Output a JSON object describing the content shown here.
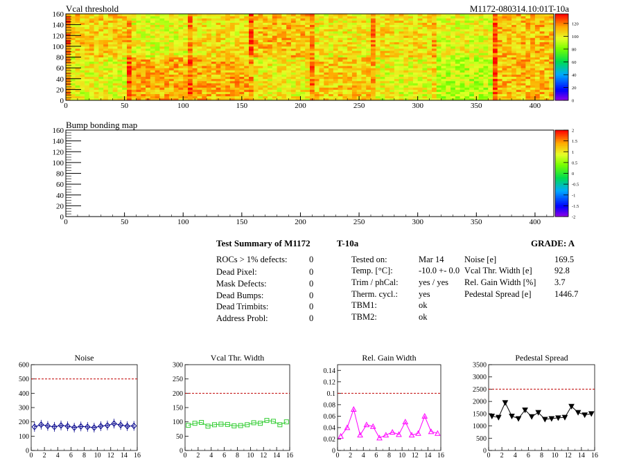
{
  "heatmaps": [
    {
      "title": "Vcal threshold",
      "runlabel": "M1172-080314.10:01T-10a",
      "xticks": [
        "0",
        "50",
        "100",
        "150",
        "200",
        "250",
        "300",
        "350",
        "400"
      ],
      "yticks": [
        "0",
        "20",
        "40",
        "60",
        "80",
        "100",
        "120",
        "140",
        "160"
      ],
      "xrange": [
        0,
        416
      ],
      "yrange": [
        0,
        160
      ],
      "colorbar_ticks": [
        "0",
        "20",
        "40",
        "60",
        "80",
        "100",
        "120"
      ],
      "colorbar_range": [
        0,
        135
      ]
    },
    {
      "title": "Bump bonding map",
      "runlabel": "",
      "xticks": [
        "0",
        "50",
        "100",
        "150",
        "200",
        "250",
        "300",
        "350",
        "400"
      ],
      "yticks": [
        "0",
        "20",
        "40",
        "60",
        "80",
        "100",
        "120",
        "140",
        "160"
      ],
      "xrange": [
        0,
        416
      ],
      "yrange": [
        0,
        160
      ],
      "colorbar_ticks": [
        "-2",
        "-1.5",
        "-1",
        "-0.5",
        "0",
        "0.5",
        "1",
        "1.5",
        "2"
      ],
      "colorbar_range": [
        -2,
        2
      ]
    }
  ],
  "summary": {
    "title_left": "Test Summary of M1172",
    "title_mid": "T-10a",
    "grade": "GRADE:  A",
    "col1": [
      {
        "label": "ROCs > 1% defects:",
        "value": "0"
      },
      {
        "label": "Dead Pixel:",
        "value": "0"
      },
      {
        "label": "Mask Defects:",
        "value": "0"
      },
      {
        "label": "Dead Bumps:",
        "value": "0"
      },
      {
        "label": "Dead Trimbits:",
        "value": "0"
      },
      {
        "label": "Address Probl:",
        "value": "0"
      }
    ],
    "col2": [
      {
        "label": "Tested on:",
        "value": "Mar 14"
      },
      {
        "label": "Temp. [°C]:",
        "value": "-10.0 +- 0.0"
      },
      {
        "label": "Trim / phCal:",
        "value": "yes / yes"
      },
      {
        "label": "Therm. cycl.:",
        "value": "yes"
      },
      {
        "label": "TBM1:",
        "value": "ok"
      },
      {
        "label": "TBM2:",
        "value": "ok"
      }
    ],
    "col3": [
      {
        "label": "Noise [e]",
        "value": "169.5"
      },
      {
        "label": "Vcal Thr. Width [e]",
        "value": "92.8"
      },
      {
        "label": "Rel. Gain Width [%]",
        "value": "3.7"
      },
      {
        "label": "Pedestal Spread [e]",
        "value": "1446.7"
      }
    ]
  },
  "chart_data": [
    {
      "type": "heatmap",
      "title": "Vcal threshold",
      "xlim": [
        0,
        416
      ],
      "ylim": [
        0,
        160
      ],
      "zlim": [
        0,
        135
      ],
      "roc_grid": {
        "cols": 8,
        "rows": 2,
        "col_width": 52,
        "row_height": 80
      }
    },
    {
      "type": "heatmap",
      "title": "Bump bonding map",
      "xlim": [
        0,
        416
      ],
      "ylim": [
        0,
        160
      ],
      "zlim": [
        -2,
        2
      ]
    },
    {
      "type": "scatter",
      "title": "Noise",
      "xlim": [
        0,
        16
      ],
      "ylim": [
        0,
        600
      ],
      "xticks": [
        "0",
        "2",
        "4",
        "6",
        "8",
        "10",
        "12",
        "14",
        "16"
      ],
      "yticks": [
        "0",
        "100",
        "200",
        "300",
        "400",
        "500",
        "600"
      ],
      "threshold": 500,
      "color": "#00008b",
      "marker": "diamond",
      "x": [
        0.5,
        1.5,
        2.5,
        3.5,
        4.5,
        5.5,
        6.5,
        7.5,
        8.5,
        9.5,
        10.5,
        11.5,
        12.5,
        13.5,
        14.5,
        15.5
      ],
      "values": [
        165,
        180,
        172,
        165,
        175,
        170,
        160,
        168,
        165,
        160,
        170,
        175,
        188,
        178,
        170,
        172
      ]
    },
    {
      "type": "scatter",
      "title": "Vcal Thr. Width",
      "xlim": [
        0,
        16
      ],
      "ylim": [
        0,
        300
      ],
      "xticks": [
        "0",
        "2",
        "4",
        "6",
        "8",
        "10",
        "12",
        "14",
        "16"
      ],
      "yticks": [
        "0",
        "50",
        "100",
        "150",
        "200",
        "250",
        "300"
      ],
      "threshold": 200,
      "color": "#32cd32",
      "marker": "square",
      "x": [
        0.5,
        1.5,
        2.5,
        3.5,
        4.5,
        5.5,
        6.5,
        7.5,
        8.5,
        9.5,
        10.5,
        11.5,
        12.5,
        13.5,
        14.5,
        15.5
      ],
      "values": [
        88,
        95,
        98,
        85,
        90,
        92,
        91,
        86,
        87,
        90,
        97,
        95,
        105,
        102,
        90,
        100
      ]
    },
    {
      "type": "line",
      "title": "Rel. Gain Width",
      "xlim": [
        0,
        16
      ],
      "ylim": [
        0,
        0.15
      ],
      "xticks": [
        "0",
        "2",
        "4",
        "6",
        "8",
        "10",
        "12",
        "14",
        "16"
      ],
      "yticks": [
        "0",
        "0.02",
        "0.04",
        "0.06",
        "0.08",
        "0.1",
        "0.12",
        "0.14"
      ],
      "threshold": 0.1,
      "color": "#ff00ff",
      "marker": "triangle",
      "x": [
        0.5,
        1.5,
        2.5,
        3.5,
        4.5,
        5.5,
        6.5,
        7.5,
        8.5,
        9.5,
        10.5,
        11.5,
        12.5,
        13.5,
        14.5,
        15.5
      ],
      "values": [
        0.025,
        0.04,
        0.072,
        0.027,
        0.045,
        0.042,
        0.022,
        0.027,
        0.032,
        0.028,
        0.05,
        0.027,
        0.03,
        0.06,
        0.033,
        0.03
      ]
    },
    {
      "type": "line",
      "title": "Pedestal Spread",
      "xlim": [
        0,
        16
      ],
      "ylim": [
        0,
        3500
      ],
      "xticks": [
        "0",
        "2",
        "4",
        "6",
        "8",
        "10",
        "12",
        "14",
        "16"
      ],
      "yticks": [
        "0",
        "500",
        "1000",
        "1500",
        "2000",
        "2500",
        "3000",
        "3500"
      ],
      "threshold": 2500,
      "color": "#000000",
      "marker": "triangle-down",
      "x": [
        0.5,
        1.5,
        2.5,
        3.5,
        4.5,
        5.5,
        6.5,
        7.5,
        8.5,
        9.5,
        10.5,
        11.5,
        12.5,
        13.5,
        14.5,
        15.5
      ],
      "values": [
        1400,
        1350,
        1950,
        1400,
        1300,
        1650,
        1380,
        1550,
        1270,
        1300,
        1330,
        1350,
        1800,
        1550,
        1450,
        1500
      ]
    }
  ]
}
